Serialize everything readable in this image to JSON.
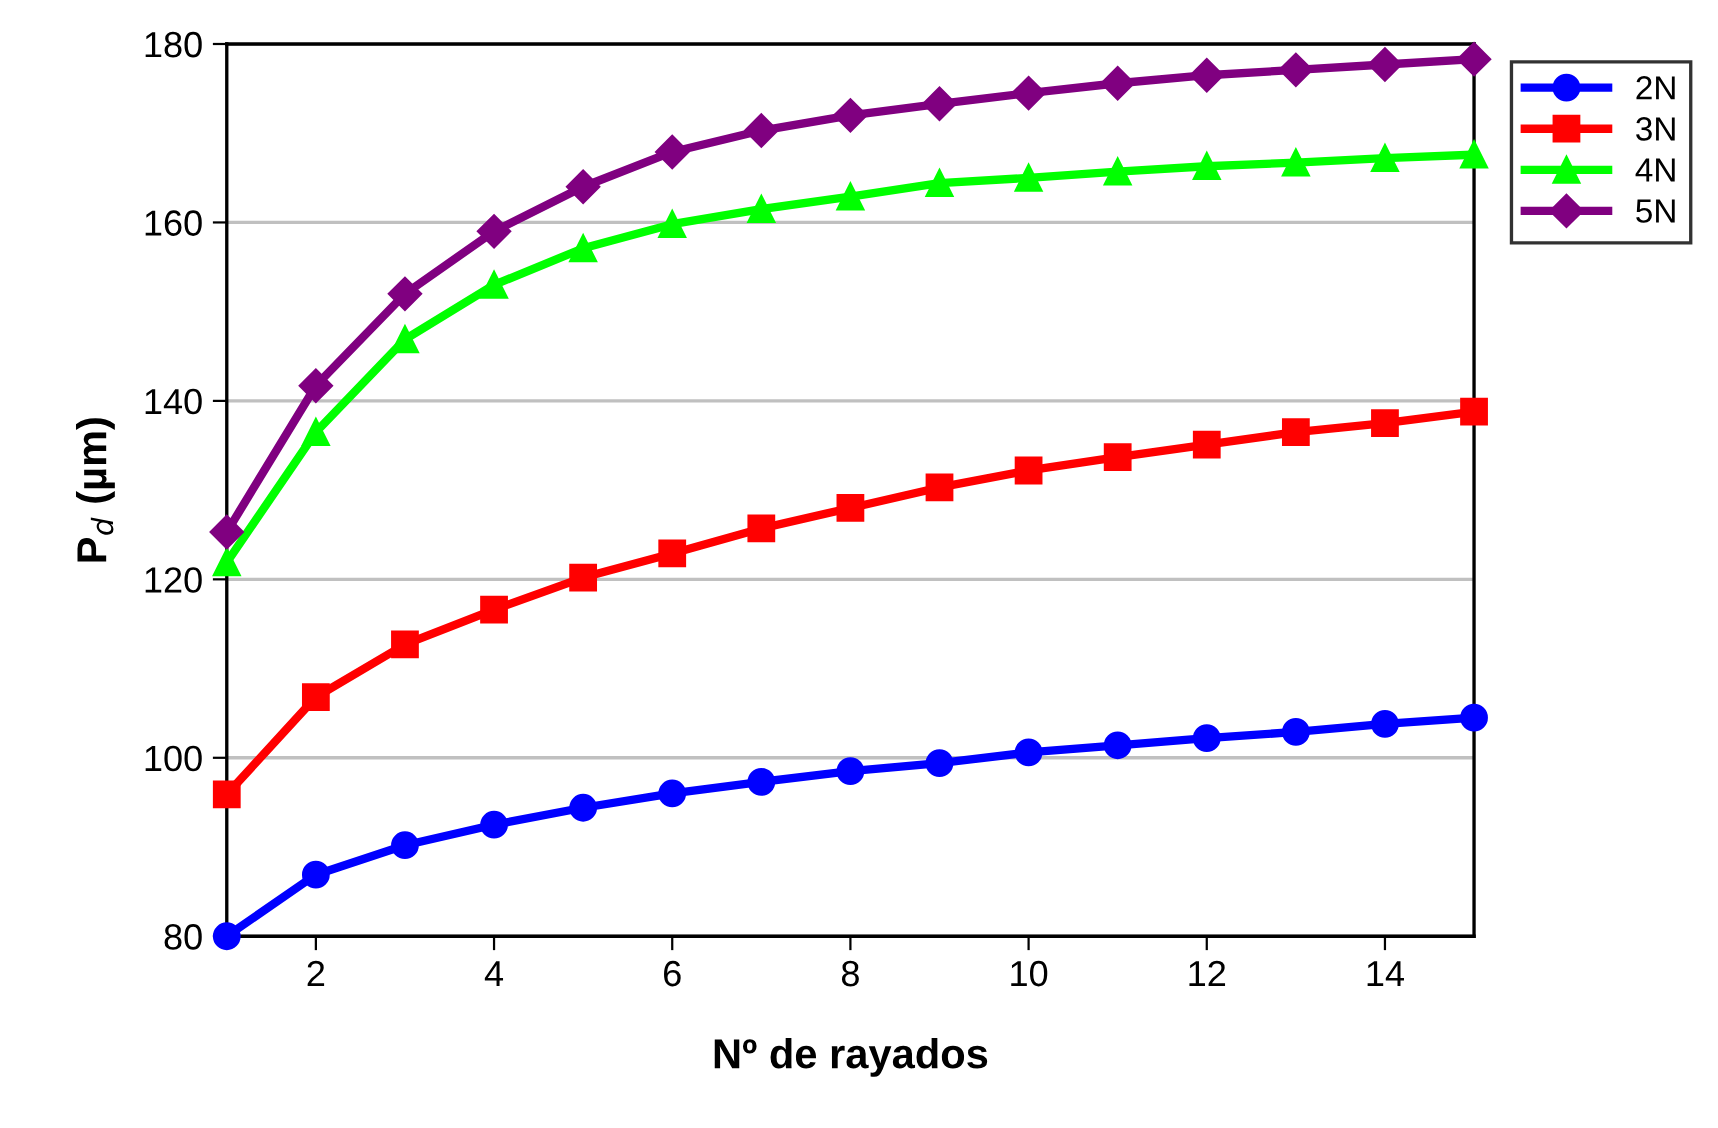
{
  "chart_data": {
    "type": "line",
    "xlabel": "Nº de rayados",
    "ylabel": "P$_{d}$ (µm)",
    "x": [
      1,
      2,
      3,
      4,
      5,
      6,
      7,
      8,
      9,
      10,
      11,
      12,
      13,
      14,
      15
    ],
    "xlim": [
      1,
      15
    ],
    "xticks": [
      2,
      4,
      6,
      8,
      10,
      12,
      14
    ],
    "ylim": [
      80,
      180
    ],
    "yticks": [
      80,
      100,
      120,
      140,
      160,
      180
    ],
    "grid": "y",
    "legend": "top right",
    "line_style": "solid",
    "series": [
      {
        "name": "2N",
        "color": "#0000ff",
        "marker": "circle",
        "values": [
          80,
          86.9,
          90.2,
          92.5,
          94.4,
          96.0,
          97.3,
          98.5,
          99.4,
          100.6,
          101.4,
          102.2,
          102.9,
          103.8,
          104.5
        ]
      },
      {
        "name": "3N",
        "color": "#ff0000",
        "marker": "square",
        "values": [
          95.9,
          106.8,
          112.7,
          116.6,
          120.2,
          122.9,
          125.7,
          128.0,
          130.3,
          132.2,
          133.7,
          135.1,
          136.5,
          137.5,
          138.8
        ]
      },
      {
        "name": "4N",
        "color": "#00ff00",
        "marker": "triangle",
        "values": [
          121.9,
          136.5,
          146.9,
          153.0,
          157.1,
          159.8,
          161.5,
          162.9,
          164.4,
          165.0,
          165.7,
          166.3,
          166.7,
          167.2,
          167.6
        ]
      },
      {
        "name": "5N",
        "color": "#800080",
        "marker": "diamond",
        "values": [
          125.3,
          141.7,
          152.0,
          159.0,
          164.0,
          167.9,
          170.3,
          172.0,
          173.3,
          174.5,
          175.6,
          176.5,
          177.1,
          177.7,
          178.3
        ]
      }
    ]
  }
}
